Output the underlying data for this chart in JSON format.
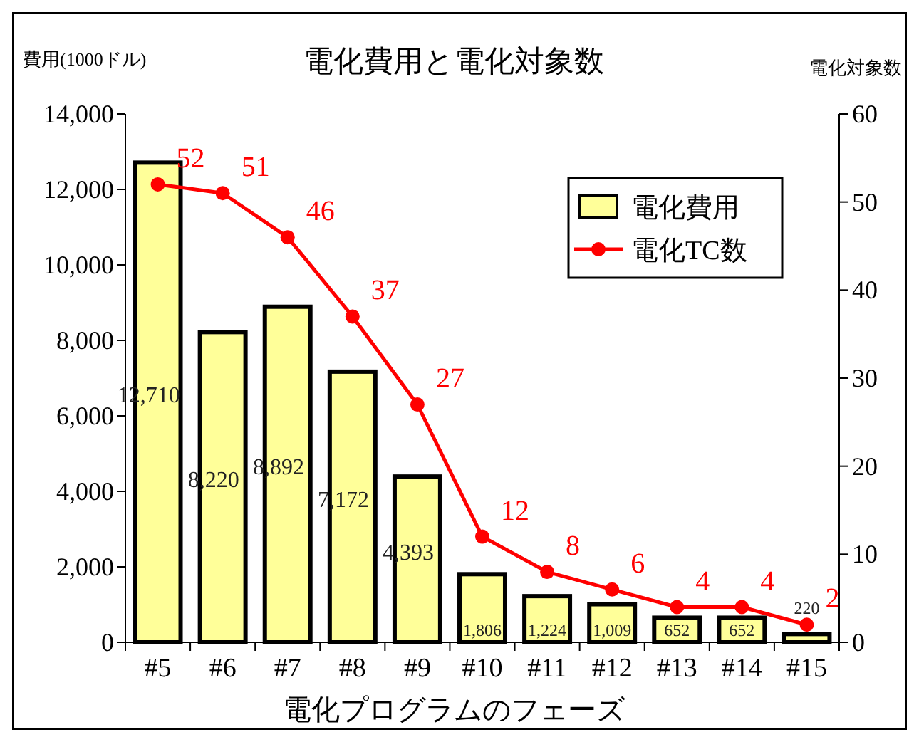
{
  "chart_data": {
    "type": "bar",
    "title": "電化費用と電化対象数",
    "xlabel": "電化プログラムのフェーズ",
    "ylabel": "費用(1000ドル)",
    "y2label": "電化対象数",
    "categories": [
      "#5",
      "#6",
      "#7",
      "#8",
      "#9",
      "#10",
      "#11",
      "#12",
      "#13",
      "#14",
      "#15"
    ],
    "series": [
      {
        "name": "電化費用",
        "color": "#ffff99",
        "values": [
          12710,
          8220,
          8892,
          7172,
          4393,
          1806,
          1224,
          1009,
          652,
          652,
          220
        ],
        "value_labels": [
          "12,710",
          "8,220",
          "8,892",
          "7,172",
          "4,393",
          "1,806",
          "1,224",
          "1,009",
          "652",
          "652",
          "220"
        ]
      },
      {
        "name": "電化TC数",
        "type": "line",
        "axis": "y2",
        "color": "#ff0000",
        "marker": "circle",
        "values": [
          52,
          51,
          46,
          37,
          27,
          12,
          8,
          6,
          4,
          4,
          2
        ],
        "data_labels": true
      }
    ],
    "ylim": [
      0,
      14000
    ],
    "yticks": [
      {
        "value": 0,
        "label": "0"
      },
      {
        "value": 2000,
        "label": "2,000"
      },
      {
        "value": 4000,
        "label": "4,000"
      },
      {
        "value": 6000,
        "label": "6,000"
      },
      {
        "value": 8000,
        "label": "8,000"
      },
      {
        "value": 10000,
        "label": "10,000"
      },
      {
        "value": 12000,
        "label": "12,000"
      },
      {
        "value": 14000,
        "label": "14,000"
      }
    ],
    "y2lim": [
      0,
      60
    ],
    "y2ticks": [
      0,
      10,
      20,
      30,
      40,
      50,
      60
    ],
    "grid": false,
    "legend": "top right"
  }
}
